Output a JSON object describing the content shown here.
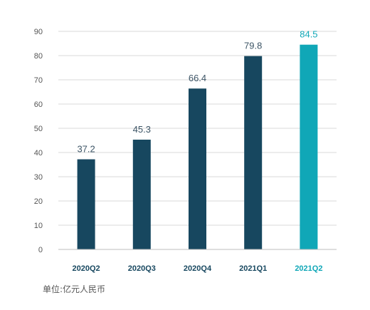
{
  "chart_data": {
    "type": "bar",
    "categories": [
      "2020Q2",
      "2020Q3",
      "2020Q4",
      "2021Q1",
      "2021Q2"
    ],
    "values": [
      37.2,
      45.3,
      66.4,
      79.8,
      84.5
    ],
    "value_labels": [
      "37.2",
      "45.3",
      "66.4",
      "79.8",
      "84.5"
    ],
    "y_ticks": [
      0,
      10,
      20,
      30,
      40,
      50,
      60,
      70,
      80,
      90
    ],
    "ylim": [
      0,
      90
    ],
    "grid": true,
    "highlight_index": 4
  },
  "colors": {
    "bar": "#17475f",
    "highlight": "#10a7b7",
    "grid": "#d9d9d9",
    "tick_text": "#555555",
    "category_text": "#17475f",
    "value_text": "#3d5566"
  },
  "unit_note": "单位:亿元人民币"
}
